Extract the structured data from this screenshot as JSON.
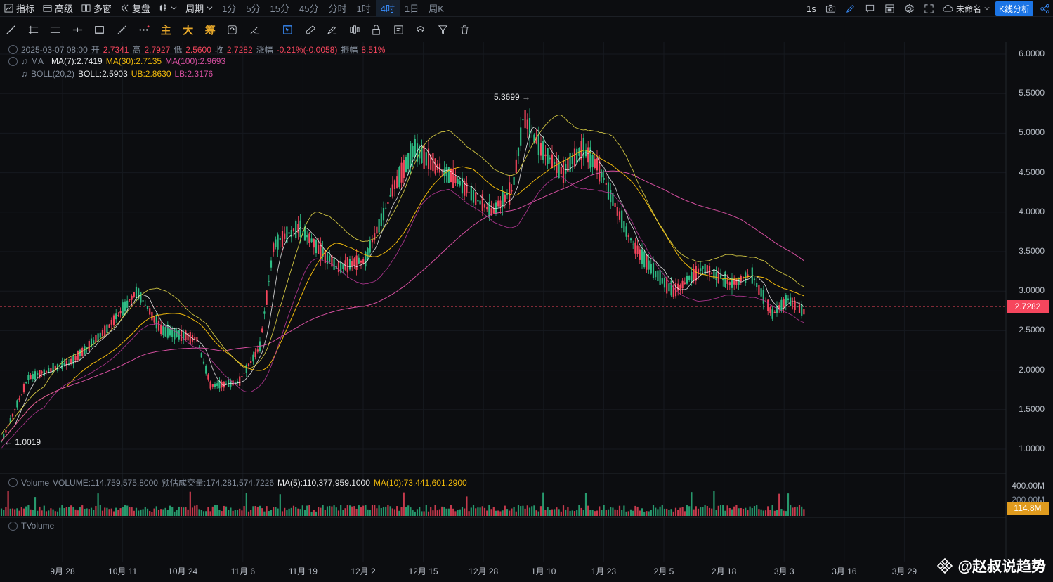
{
  "topbar": {
    "indicator_label": "指标",
    "advanced_label": "高级",
    "multiwin_label": "多窗",
    "replay_label": "复盘",
    "period_label": "周期",
    "intervals": [
      "1分",
      "5分",
      "15分",
      "45分",
      "分时",
      "1时",
      "4时",
      "1日",
      "周K"
    ],
    "active_interval": "4时",
    "speed_label": "1s",
    "layout_name": "未命名",
    "kline_analysis": "K线分析"
  },
  "toolbar": {
    "text_tools": [
      "主",
      "大",
      "筹"
    ]
  },
  "legend": {
    "datetime": "2025-03-07 08:00",
    "open_label": "开",
    "open": "2.7341",
    "high_label": "高",
    "high": "2.7927",
    "low_label": "低",
    "low": "2.5600",
    "close_label": "收",
    "close": "2.7282",
    "change_label": "涨幅",
    "change": "-0.21%(-0.0058)",
    "amplitude_label": "振幅",
    "amplitude": "8.51%",
    "ma_name": "MA",
    "ma7": "MA(7):2.7419",
    "ma30": "MA(30):2.7135",
    "ma100": "MA(100):2.9693",
    "boll_name": "BOLL(20,2)",
    "boll": "BOLL:2.5903",
    "ub": "UB:2.8630",
    "lb": "LB:2.3176",
    "volume_name": "Volume",
    "volume": "VOLUME:114,759,575.8000",
    "est_volume": "预估成交量:174,281,574.7226",
    "vol_ma5": "MA(5):110,377,959.1000",
    "vol_ma10": "MA(10):73,441,601.2900",
    "tvolume_name": "TVolume"
  },
  "price_axis": [
    "6.0000",
    "5.5000",
    "5.0000",
    "4.5000",
    "4.0000",
    "3.5000",
    "3.0000",
    "2.5000",
    "2.0000",
    "1.5000",
    "1.0000"
  ],
  "last_price": "2.7282",
  "volume_axis": [
    "400.00M",
    "200.00M"
  ],
  "last_volume": "114.8M",
  "date_axis": [
    "9月 28",
    "10月 11",
    "10月 24",
    "11月 6",
    "11月 19",
    "12月 2",
    "12月 15",
    "12月 28",
    "1月 10",
    "1月 23",
    "2月 5",
    "2月 18",
    "3月 3",
    "3月 16",
    "3月 29"
  ],
  "annotations": {
    "high_marker": "5.3699",
    "low_marker": "1.0019"
  },
  "watermark": "@赵叔说趋势",
  "colors": {
    "up": "#2ebd85",
    "down": "#f6465d",
    "ma7": "#ffffff",
    "ma30": "#f0b90b",
    "ma100": "#d64fa0",
    "accent": "#1c75e6"
  }
}
